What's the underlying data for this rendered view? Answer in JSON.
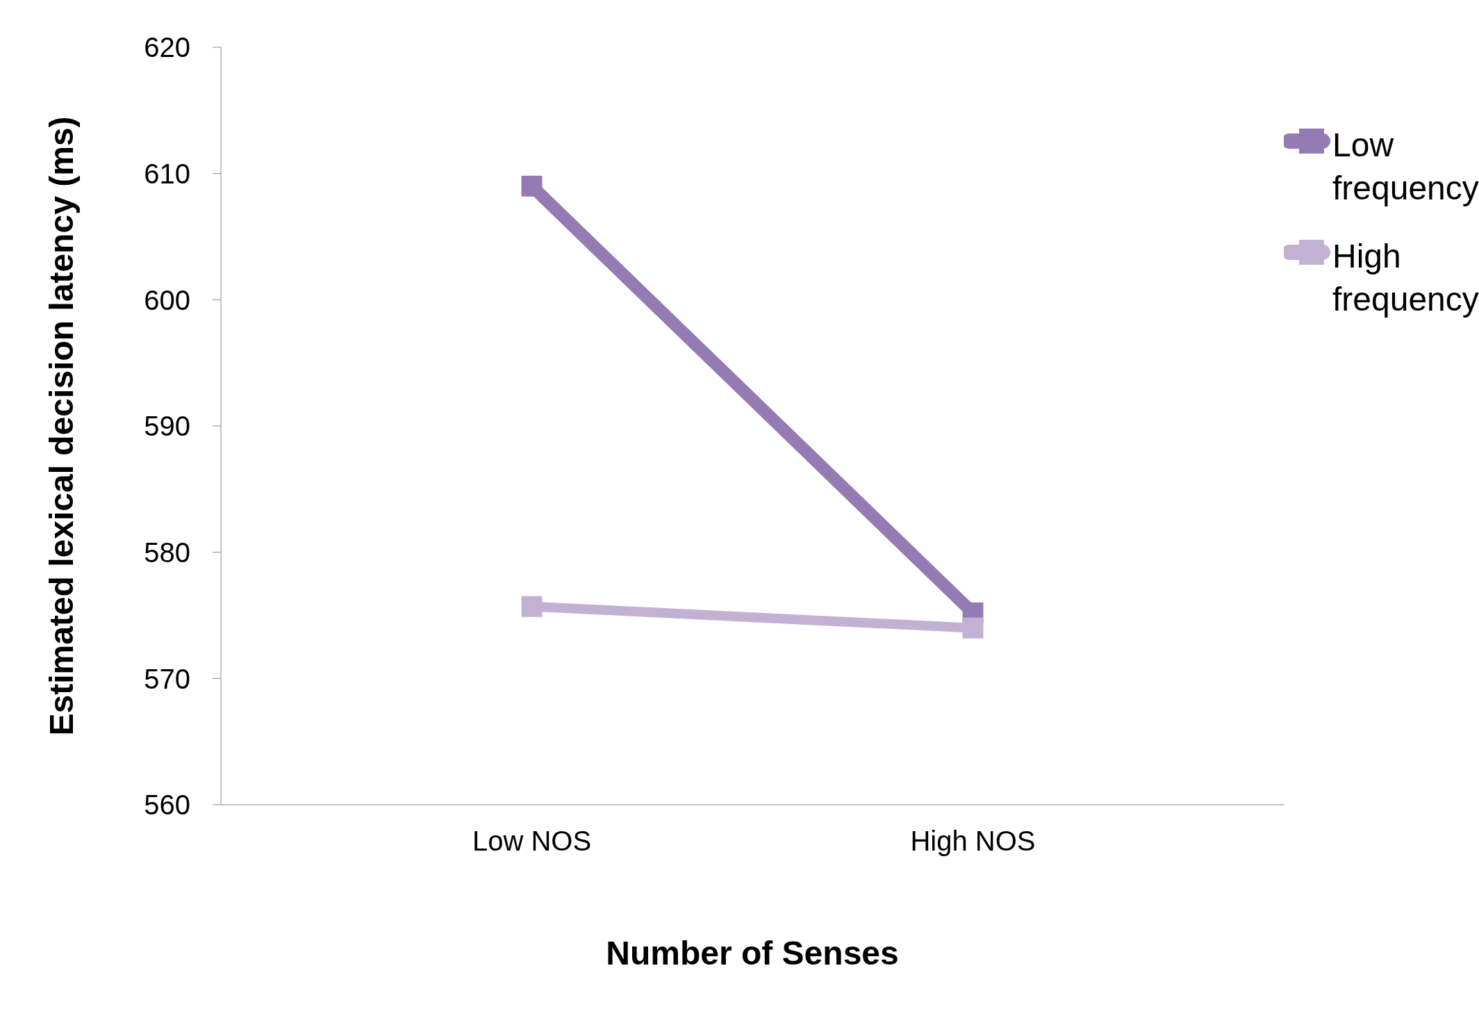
{
  "chart_data": {
    "type": "line",
    "xlabel": "Number of Senses",
    "ylabel": "Estimated lexical decision latency (ms)",
    "categories": [
      "Low NOS",
      "High NOS"
    ],
    "series": [
      {
        "name": "Low frequency",
        "color": "#957bb4",
        "values": [
          609,
          575.2
        ]
      },
      {
        "name": "High frequency",
        "color": "#c3b1d4",
        "values": [
          575.7,
          574
        ]
      }
    ],
    "ylim": [
      560,
      620
    ],
    "yticks": [
      560,
      570,
      580,
      590,
      600,
      610,
      620
    ],
    "grid": false,
    "legend": "top right",
    "marker": "square",
    "line_style": "solid"
  }
}
